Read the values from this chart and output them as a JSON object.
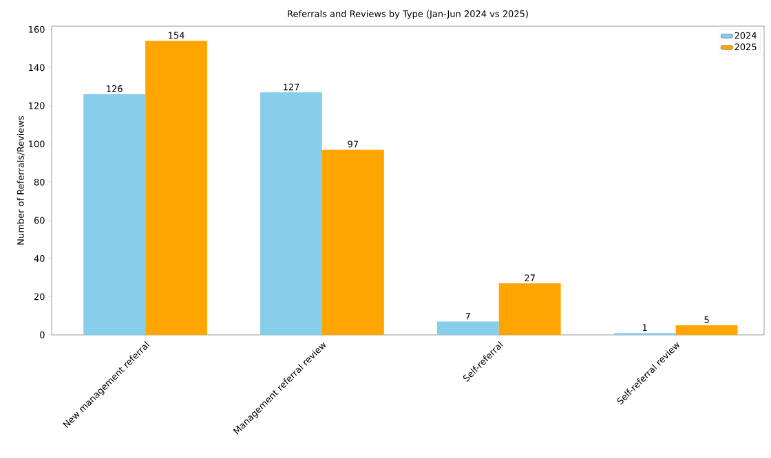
{
  "chart_data": {
    "type": "bar",
    "title": "Referrals and Reviews by Type (Jan-Jun 2024 vs 2025)",
    "ylabel": "Number of Referrals/Reviews",
    "categories": [
      "New management referral",
      "Management referral review",
      "Self-referral",
      "Self-referral review"
    ],
    "series": [
      {
        "name": "2024",
        "color": "#87ceeb",
        "values": [
          126,
          127,
          7,
          1
        ]
      },
      {
        "name": "2025",
        "color": "#ffa500",
        "values": [
          154,
          97,
          27,
          5
        ]
      }
    ],
    "ylim": [
      0,
      161.7
    ],
    "yticks": [
      0,
      20,
      40,
      60,
      80,
      100,
      120,
      140,
      160
    ],
    "data_labels": true,
    "legend": "top right",
    "grid": false
  }
}
